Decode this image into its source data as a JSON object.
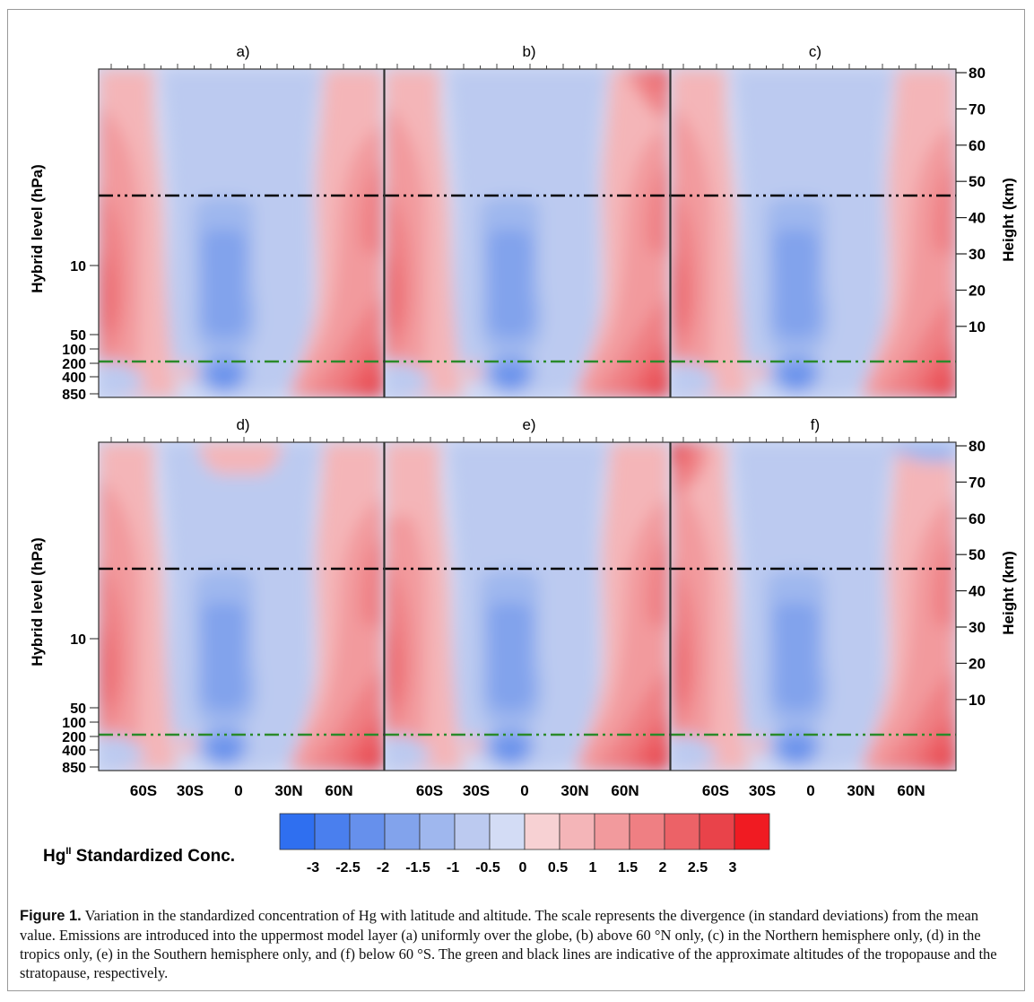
{
  "figure": {
    "panels": [
      {
        "label": "a)",
        "variant": "uniform"
      },
      {
        "label": "b)",
        "variant": "north60"
      },
      {
        "label": "c)",
        "variant": "nh"
      },
      {
        "label": "d)",
        "variant": "tropics"
      },
      {
        "label": "e)",
        "variant": "sh"
      },
      {
        "label": "f)",
        "variant": "south60"
      }
    ],
    "left_axis_label": "Hybrid level (hPa)",
    "left_ticks": [
      "10",
      "50",
      "100",
      "200",
      "400",
      "850"
    ],
    "right_axis_label": "Height (km)",
    "right_ticks": [
      "80",
      "70",
      "60",
      "50",
      "40",
      "30",
      "20",
      "10"
    ],
    "x_ticks": [
      "60S",
      "30S",
      "0",
      "30N",
      "60N"
    ],
    "colorbar": {
      "title_main": "Hg",
      "title_sup": "II",
      "title_rest": " Standardized Conc.",
      "ticks": [
        "-3",
        "-2.5",
        "-2",
        "-1.5",
        "-1",
        "-0.5",
        "0",
        "0.5",
        "1",
        "1.5",
        "2",
        "2.5",
        "3"
      ],
      "colors": [
        "#2f6ff0",
        "#4a7fee",
        "#6690ec",
        "#82a3ec",
        "#9fb7ee",
        "#bccaf0",
        "#d3dcf5",
        "#f7d1d3",
        "#f4b5b8",
        "#f29a9d",
        "#ef7f83",
        "#ec6267",
        "#e9434a",
        "#f01b22"
      ]
    },
    "line_colors": {
      "stratopause": "#000000",
      "tropopause": "#2a8a2a"
    }
  },
  "caption": {
    "label": "Figure 1.",
    "text": " Variation in the standardized concentration of Hg with latitude and altitude. The scale represents the divergence (in standard deviations) from the mean value. Emissions are introduced into the uppermost model layer (a) uniformly over the globe, (b) above 60 °N only, (c) in the Northern hemisphere only, (d) in the tropics only, (e) in the Southern hemisphere only, and (f) below 60 °S. The green and black lines are indicative of the approximate altitudes of the tropopause and the stratopause, respectively."
  }
}
